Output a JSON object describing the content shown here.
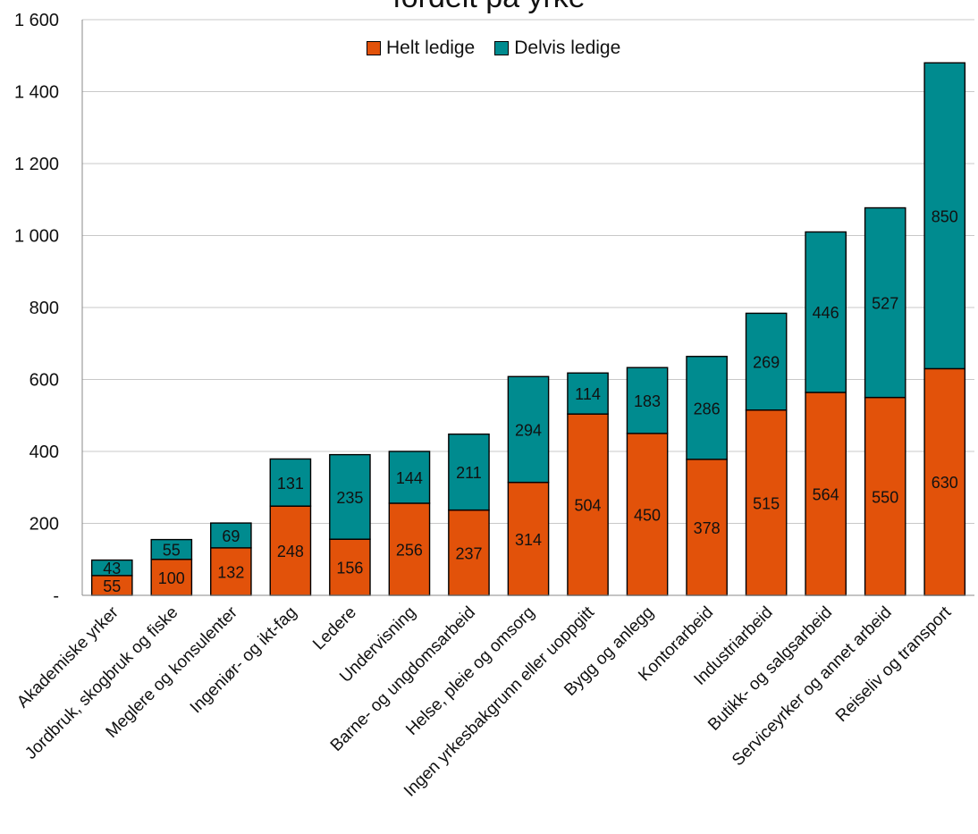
{
  "chart_data": {
    "type": "bar",
    "stacked": true,
    "title": "fordelt på yrke",
    "categories": [
      "Akademiske yrker",
      "Jordbruk, skogbruk og fiske",
      "Meglere og konsulenter",
      "Ingeniør- og ikt-fag",
      "Ledere",
      "Undervisning",
      "Barne- og ungdomsarbeid",
      "Helse, pleie og omsorg",
      "Ingen yrkesbakgrunn eller uoppgitt",
      "Bygg og anlegg",
      "Kontorarbeid",
      "Industriarbeid",
      "Butikk- og salgsarbeid",
      "Serviceyrker og annet arbeid",
      "Reiseliv og transport"
    ],
    "series": [
      {
        "name": "Helt ledige",
        "color": "#E2520A",
        "values": [
          55,
          100,
          132,
          248,
          156,
          256,
          237,
          314,
          504,
          450,
          378,
          515,
          564,
          550,
          630
        ]
      },
      {
        "name": "Delvis ledige",
        "color": "#008B8F",
        "values": [
          43,
          55,
          69,
          131,
          235,
          144,
          211,
          294,
          114,
          183,
          286,
          269,
          446,
          527,
          850
        ]
      }
    ],
    "ylim": [
      0,
      1600
    ],
    "yticks": [
      0,
      200,
      400,
      600,
      800,
      1000,
      1200,
      1400,
      1600
    ],
    "ytick_labels": [
      "-",
      "200",
      "400",
      "600",
      "800",
      "1 000",
      "1 200",
      "1 400",
      "1 600"
    ],
    "grid": true,
    "legend_position": "top-center"
  }
}
